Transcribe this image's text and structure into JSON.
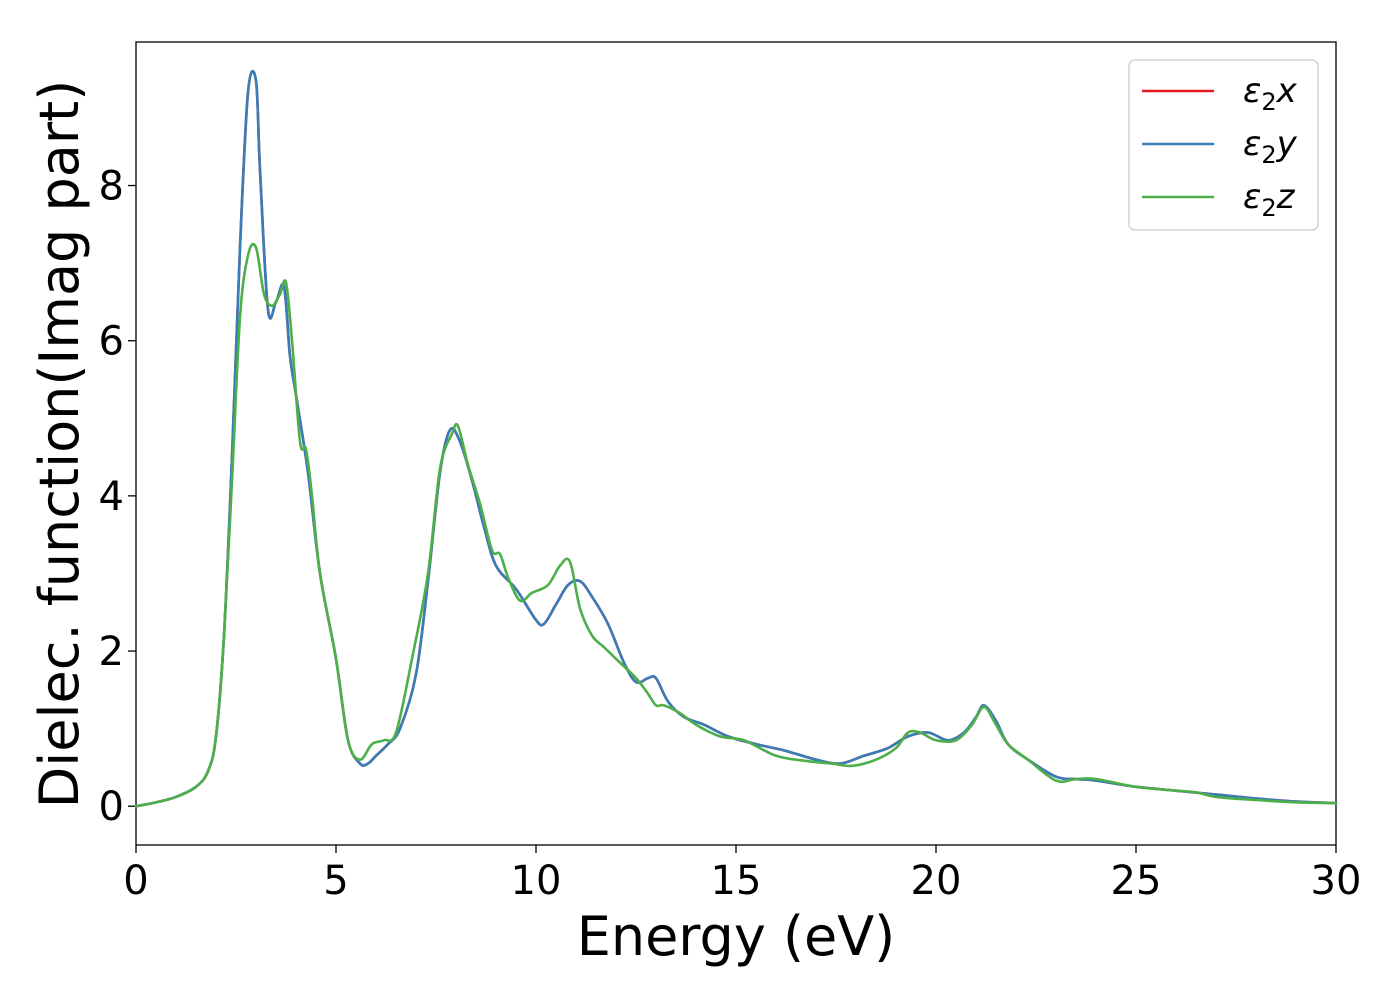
{
  "chart_data": {
    "type": "line",
    "xlabel": "Energy (eV)",
    "ylabel": "Dielec. function(Imag part)",
    "xlim": [
      0,
      30
    ],
    "ylim": [
      -0.5,
      9.85
    ],
    "x_ticks": [
      0,
      5,
      10,
      15,
      20,
      25,
      30
    ],
    "y_ticks": [
      0,
      2,
      4,
      6,
      8
    ],
    "grid": false,
    "legend": "top-right",
    "series": [
      {
        "name": "ε2x",
        "name_main": "ε",
        "name_sub": "2",
        "name_tail": "x",
        "color": "#e41a1c",
        "x": [
          0,
          0.5,
          1.0,
          1.5,
          1.8,
          2.0,
          2.2,
          2.4,
          2.6,
          2.8,
          3.0,
          3.1,
          3.3,
          3.5,
          3.7,
          3.85,
          4.0,
          4.3,
          4.6,
          5.0,
          5.3,
          5.6,
          5.8,
          6.0,
          6.3,
          6.6,
          7.0,
          7.3,
          7.6,
          7.85,
          8.1,
          8.4,
          8.7,
          9.0,
          9.5,
          10.0,
          10.2,
          10.5,
          10.8,
          11.1,
          11.4,
          11.8,
          12.2,
          12.5,
          12.8,
          13.0,
          13.3,
          13.7,
          14.2,
          14.8,
          15.5,
          16.2,
          17.0,
          17.6,
          18.2,
          18.8,
          19.3,
          19.8,
          20.3,
          20.7,
          21.0,
          21.2,
          21.5,
          21.8,
          22.3,
          23.0,
          23.5,
          24.0,
          25.0,
          26.0,
          27.0,
          28.0,
          29.0,
          30.0
        ],
        "y": [
          0,
          0.05,
          0.12,
          0.25,
          0.45,
          0.9,
          2.2,
          4.5,
          7.2,
          9.2,
          9.35,
          8.2,
          6.4,
          6.5,
          6.7,
          5.8,
          5.3,
          4.3,
          3.0,
          1.9,
          0.85,
          0.55,
          0.55,
          0.65,
          0.8,
          1.0,
          1.7,
          2.9,
          4.3,
          4.85,
          4.7,
          4.2,
          3.6,
          3.1,
          2.8,
          2.4,
          2.35,
          2.6,
          2.85,
          2.9,
          2.7,
          2.35,
          1.85,
          1.6,
          1.65,
          1.65,
          1.35,
          1.15,
          1.05,
          0.9,
          0.8,
          0.72,
          0.6,
          0.55,
          0.65,
          0.75,
          0.9,
          0.95,
          0.85,
          0.95,
          1.15,
          1.3,
          1.1,
          0.8,
          0.6,
          0.38,
          0.35,
          0.33,
          0.25,
          0.2,
          0.15,
          0.1,
          0.06,
          0.04
        ]
      },
      {
        "name": "ε2y",
        "name_main": "ε",
        "name_sub": "2",
        "name_tail": "y",
        "color": "#377eb8",
        "x": [
          0,
          0.5,
          1.0,
          1.5,
          1.8,
          2.0,
          2.2,
          2.4,
          2.6,
          2.8,
          3.0,
          3.1,
          3.3,
          3.5,
          3.7,
          3.85,
          4.0,
          4.3,
          4.6,
          5.0,
          5.3,
          5.6,
          5.8,
          6.0,
          6.3,
          6.6,
          7.0,
          7.3,
          7.6,
          7.85,
          8.1,
          8.4,
          8.7,
          9.0,
          9.5,
          10.0,
          10.2,
          10.5,
          10.8,
          11.1,
          11.4,
          11.8,
          12.2,
          12.5,
          12.8,
          13.0,
          13.3,
          13.7,
          14.2,
          14.8,
          15.5,
          16.2,
          17.0,
          17.6,
          18.2,
          18.8,
          19.3,
          19.8,
          20.3,
          20.7,
          21.0,
          21.2,
          21.5,
          21.8,
          22.3,
          23.0,
          23.5,
          24.0,
          25.0,
          26.0,
          27.0,
          28.0,
          29.0,
          30.0
        ],
        "y": [
          0,
          0.05,
          0.12,
          0.25,
          0.45,
          0.9,
          2.2,
          4.5,
          7.2,
          9.2,
          9.35,
          8.2,
          6.4,
          6.5,
          6.7,
          5.8,
          5.3,
          4.3,
          3.0,
          1.9,
          0.85,
          0.55,
          0.55,
          0.65,
          0.8,
          1.0,
          1.7,
          2.9,
          4.3,
          4.85,
          4.7,
          4.2,
          3.6,
          3.1,
          2.8,
          2.4,
          2.35,
          2.6,
          2.85,
          2.9,
          2.7,
          2.35,
          1.85,
          1.6,
          1.65,
          1.65,
          1.35,
          1.15,
          1.05,
          0.9,
          0.8,
          0.72,
          0.6,
          0.55,
          0.65,
          0.75,
          0.9,
          0.95,
          0.85,
          0.95,
          1.15,
          1.3,
          1.1,
          0.8,
          0.6,
          0.38,
          0.35,
          0.33,
          0.25,
          0.2,
          0.15,
          0.1,
          0.06,
          0.04
        ]
      },
      {
        "name": "ε2z",
        "name_main": "ε",
        "name_sub": "2",
        "name_tail": "z",
        "color": "#4daf4a",
        "x": [
          0,
          0.5,
          1.0,
          1.5,
          1.8,
          2.0,
          2.2,
          2.4,
          2.6,
          2.8,
          3.0,
          3.2,
          3.4,
          3.6,
          3.75,
          3.9,
          4.1,
          4.25,
          4.4,
          4.6,
          5.0,
          5.3,
          5.6,
          5.9,
          6.2,
          6.5,
          6.9,
          7.3,
          7.6,
          7.9,
          8.05,
          8.3,
          8.6,
          8.9,
          9.1,
          9.3,
          9.6,
          9.9,
          10.3,
          10.6,
          10.85,
          11.1,
          11.4,
          11.7,
          12.0,
          12.5,
          12.8,
          13.0,
          13.2,
          13.6,
          14.0,
          14.6,
          15.2,
          16.0,
          16.8,
          17.4,
          17.9,
          18.5,
          19.0,
          19.3,
          19.6,
          20.0,
          20.5,
          20.9,
          21.2,
          21.5,
          21.8,
          22.3,
          23.0,
          23.5,
          24.0,
          25.0,
          26.0,
          26.5,
          27.0,
          28.0,
          29.0,
          30.0
        ],
        "y": [
          0,
          0.05,
          0.12,
          0.25,
          0.45,
          0.9,
          2.2,
          4.2,
          6.3,
          7.1,
          7.2,
          6.6,
          6.45,
          6.6,
          6.75,
          6.0,
          4.7,
          4.6,
          4.0,
          3.0,
          1.9,
          0.85,
          0.6,
          0.8,
          0.85,
          0.95,
          1.9,
          3.0,
          4.35,
          4.8,
          4.9,
          4.4,
          3.9,
          3.3,
          3.25,
          2.95,
          2.65,
          2.75,
          2.85,
          3.1,
          3.15,
          2.55,
          2.2,
          2.05,
          1.9,
          1.65,
          1.45,
          1.3,
          1.3,
          1.2,
          1.05,
          0.9,
          0.85,
          0.65,
          0.58,
          0.55,
          0.52,
          0.6,
          0.75,
          0.95,
          0.95,
          0.85,
          0.85,
          1.05,
          1.28,
          1.05,
          0.8,
          0.6,
          0.33,
          0.35,
          0.35,
          0.25,
          0.2,
          0.18,
          0.12,
          0.08,
          0.05,
          0.04
        ]
      }
    ]
  }
}
